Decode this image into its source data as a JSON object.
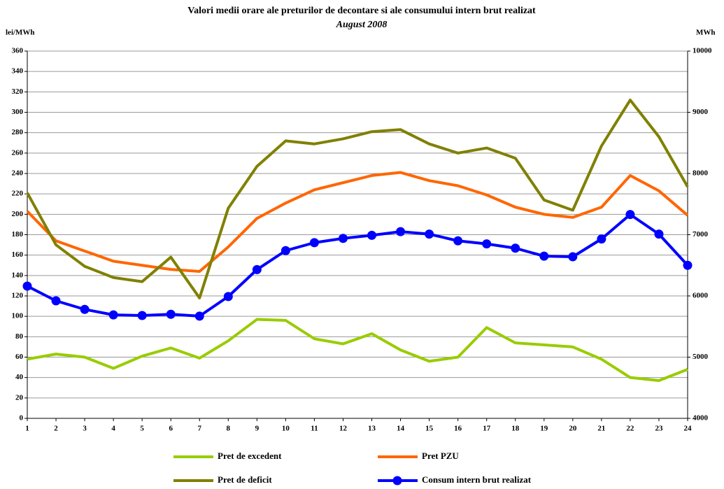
{
  "chart_data": {
    "type": "line",
    "title": "Valori medii orare ale preturilor de decontare si ale consumului intern brut realizat",
    "subtitle": "August 2008",
    "ylabel": "lei/MWh",
    "y2label": "MWh",
    "categories": [
      "1",
      "2",
      "3",
      "4",
      "5",
      "6",
      "7",
      "8",
      "9",
      "10",
      "11",
      "12",
      "13",
      "14",
      "15",
      "16",
      "17",
      "18",
      "19",
      "20",
      "21",
      "22",
      "23",
      "24"
    ],
    "ylim": [
      0,
      360
    ],
    "yticks": [
      0,
      20,
      40,
      60,
      80,
      100,
      120,
      140,
      160,
      180,
      200,
      220,
      240,
      260,
      280,
      300,
      320,
      340,
      360
    ],
    "y2lim": [
      4000,
      10000
    ],
    "y2ticks": [
      4000,
      5000,
      6000,
      7000,
      8000,
      9000,
      10000
    ],
    "grid": true,
    "series": [
      {
        "name": "Pret de excedent",
        "color": "#99cc00",
        "values": [
          58,
          63,
          60,
          49,
          61,
          69,
          59,
          76,
          97,
          96,
          78,
          73,
          83,
          67,
          56,
          60,
          89,
          74,
          72,
          70,
          58,
          40,
          37,
          48
        ]
      },
      {
        "name": "Pret PZU",
        "color": "#ff6600",
        "values": [
          203,
          174,
          164,
          154,
          150,
          146,
          144,
          168,
          196,
          211,
          224,
          231,
          238,
          241,
          233,
          228,
          219,
          207,
          200,
          197,
          207,
          238,
          223,
          199
        ]
      },
      {
        "name": "Pret de deficit",
        "color": "#808000",
        "values": [
          221,
          170,
          149,
          138,
          134,
          158,
          118,
          206,
          247,
          272,
          269,
          274,
          281,
          283,
          269,
          260,
          265,
          255,
          214,
          204,
          267,
          312,
          276,
          227
        ]
      },
      {
        "name": "Consum intern brut realizat",
        "color": "#0000ff",
        "axis": "y2",
        "marker": "circle",
        "values": [
          6160,
          5920,
          5780,
          5690,
          5680,
          5700,
          5670,
          5990,
          6430,
          6740,
          6870,
          6940,
          6990,
          7050,
          7010,
          6900,
          6850,
          6780,
          6650,
          6640,
          6930,
          7330,
          7010,
          6500
        ]
      }
    ]
  }
}
